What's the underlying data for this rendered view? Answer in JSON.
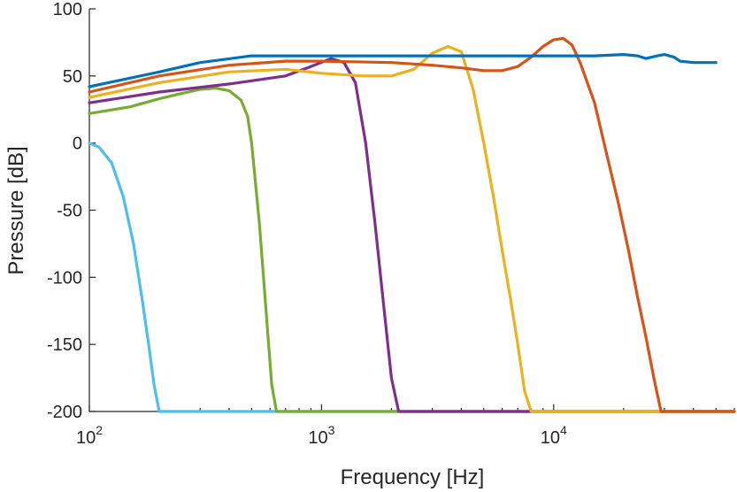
{
  "chart_data": {
    "type": "line",
    "title": "",
    "xlabel": "Frequency [Hz]",
    "ylabel": "Pressure [dB]",
    "xscale": "log",
    "xlim": [
      100,
      60000
    ],
    "ylim": [
      -200,
      100
    ],
    "grid": false,
    "legend": "none",
    "x_ticks": [
      {
        "value": 100,
        "base": "10",
        "exp": "2"
      },
      {
        "value": 1000,
        "base": "10",
        "exp": "3"
      },
      {
        "value": 10000,
        "base": "10",
        "exp": "4"
      }
    ],
    "y_ticks": [
      "100",
      "50",
      "0",
      "-50",
      "-100",
      "-150",
      "-200"
    ],
    "series": [
      {
        "color": "#4DBEEE",
        "x": [
          100,
          110,
          125,
          140,
          155,
          170,
          180,
          190,
          200,
          60000
        ],
        "y": [
          0,
          -3,
          -15,
          -40,
          -75,
          -120,
          -150,
          -180,
          -200,
          -200
        ]
      },
      {
        "color": "#77AC30",
        "x": [
          100,
          150,
          200,
          250,
          300,
          350,
          400,
          450,
          480,
          500,
          540,
          580,
          610,
          640,
          60000
        ],
        "y": [
          22,
          27,
          33,
          37,
          40,
          41,
          39,
          32,
          20,
          0,
          -60,
          -130,
          -180,
          -200,
          -200
        ]
      },
      {
        "color": "#7E2F8E",
        "x": [
          100,
          200,
          400,
          700,
          900,
          1100,
          1250,
          1400,
          1550,
          1700,
          1850,
          2000,
          2150,
          60000
        ],
        "y": [
          30,
          38,
          44,
          50,
          57,
          63,
          60,
          45,
          0,
          -60,
          -120,
          -175,
          -200,
          -200
        ]
      },
      {
        "color": "#EDB120",
        "x": [
          100,
          200,
          400,
          700,
          1000,
          1500,
          2000,
          2500,
          3000,
          3500,
          4000,
          4500,
          5000,
          5500,
          6000,
          6500,
          7000,
          7500,
          8000,
          60000
        ],
        "y": [
          34,
          45,
          53,
          55,
          52,
          50,
          50,
          55,
          67,
          72,
          68,
          40,
          0,
          -40,
          -80,
          -115,
          -150,
          -185,
          -200,
          -200
        ]
      },
      {
        "color": "#D95319",
        "x": [
          100,
          200,
          400,
          700,
          1000,
          2000,
          3000,
          4000,
          5000,
          6000,
          7000,
          8000,
          9000,
          10000,
          11000,
          12000,
          13000,
          15000,
          17000,
          19000,
          21000,
          23000,
          25000,
          27000,
          29000,
          60000
        ],
        "y": [
          38,
          50,
          58,
          61,
          61,
          60,
          58,
          56,
          54,
          54,
          57,
          64,
          72,
          77,
          78,
          73,
          60,
          30,
          -10,
          -45,
          -80,
          -115,
          -145,
          -175,
          -200,
          -200
        ]
      },
      {
        "color": "#0072BD",
        "x": [
          100,
          200,
          300,
          500,
          1000,
          3000,
          10000,
          15000,
          20000,
          23000,
          25000,
          28000,
          30000,
          33000,
          35000,
          40000,
          50000
        ],
        "y": [
          42,
          53,
          60,
          65,
          65,
          65,
          65,
          65,
          66,
          65,
          63,
          65,
          66,
          64,
          61,
          60,
          60
        ]
      }
    ]
  }
}
